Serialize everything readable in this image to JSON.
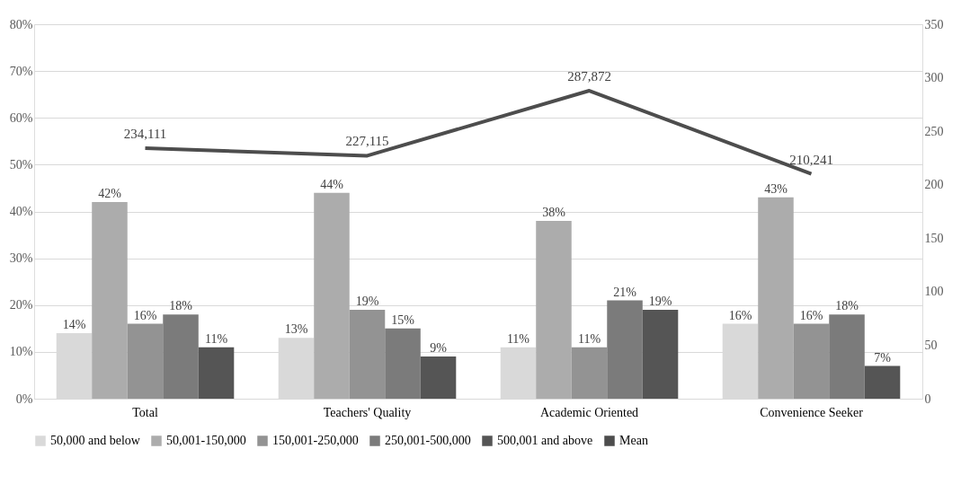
{
  "chart_data": {
    "type": "bar",
    "categories": [
      "Total",
      "Teachers' Quality",
      "Academic Oriented",
      "Convenience Seeker"
    ],
    "series": [
      {
        "name": "50,000 and below",
        "color": "#d9d9d9",
        "values": [
          14,
          13,
          11,
          16
        ],
        "value_labels": [
          "14%",
          "13%",
          "11%",
          "16%"
        ]
      },
      {
        "name": "50,001-150,000",
        "color": "#acacac",
        "values": [
          42,
          44,
          38,
          43
        ],
        "value_labels": [
          "42%",
          "44%",
          "38%",
          "43%"
        ]
      },
      {
        "name": "150,001-250,000",
        "color": "#939393",
        "values": [
          16,
          19,
          11,
          16
        ],
        "value_labels": [
          "16%",
          "19%",
          "11%",
          "16%"
        ]
      },
      {
        "name": "250,001-500,000",
        "color": "#7b7b7b",
        "values": [
          18,
          15,
          21,
          18
        ],
        "value_labels": [
          "18%",
          "15%",
          "21%",
          "18%"
        ]
      },
      {
        "name": "500,001 and above",
        "color": "#555555",
        "values": [
          11,
          9,
          19,
          7
        ],
        "value_labels": [
          "11%",
          "9%",
          "19%",
          "7%"
        ]
      },
      {
        "name": "Mean",
        "type": "line",
        "axis": "y2",
        "color": "#4d4d4d",
        "values": [
          234.111,
          227.115,
          287.872,
          210.241
        ]
      }
    ],
    "ylim": [
      0,
      80
    ],
    "yticks": [
      {
        "value": 0,
        "label": "0%"
      },
      {
        "value": 10,
        "label": "10%"
      },
      {
        "value": 20,
        "label": "20%"
      },
      {
        "value": 30,
        "label": "30%"
      },
      {
        "value": 40,
        "label": "40%"
      },
      {
        "value": 50,
        "label": "50%"
      },
      {
        "value": 60,
        "label": "60%"
      },
      {
        "value": 70,
        "label": "70%"
      },
      {
        "value": 80,
        "label": "80%"
      }
    ],
    "y2lim": [
      0,
      350
    ],
    "y2ticks": [
      0,
      50,
      100,
      150,
      200,
      250,
      300,
      350
    ],
    "annotations": [
      "234,111",
      "227,115",
      "287,872",
      "210,241"
    ],
    "grid": "y",
    "legend": "bottom",
    "marker": "none"
  }
}
